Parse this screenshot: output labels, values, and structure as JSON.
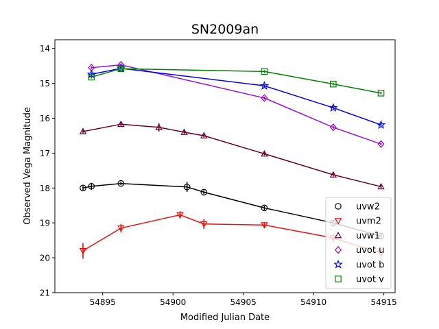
{
  "chart_data": {
    "type": "scatter",
    "title": "SN2009an",
    "xlabel": "Modified Julian Date",
    "ylabel": "Observed Vega Magnitude",
    "xlim": [
      54891.6,
      54915.8
    ],
    "ylim": [
      21,
      13.75
    ],
    "y_inverted": true,
    "grid": false,
    "legend_position": "lower-right",
    "x_ticks": [
      54895,
      54900,
      54905,
      54910,
      54915
    ],
    "y_ticks": [
      14,
      15,
      16,
      17,
      18,
      19,
      20,
      21
    ],
    "series": [
      {
        "name": "uvw2",
        "marker": "circle",
        "color": "#000000",
        "line": "#000000",
        "x": [
          54893.6,
          54894.2,
          54896.3,
          54901.0,
          54902.2,
          54906.5,
          54911.4,
          54914.8
        ],
        "y": [
          18.0,
          17.95,
          17.87,
          17.97,
          18.12,
          18.57,
          19.0,
          19.38
        ],
        "err": [
          0.06,
          0.1,
          0.05,
          0.14,
          0.06,
          0.06,
          0.08,
          0.1
        ]
      },
      {
        "name": "uvm2",
        "marker": "triangle-down",
        "color": "#ff0000",
        "line": "#ee1111",
        "x": [
          54893.6,
          54896.3,
          54900.5,
          54902.2,
          54906.5,
          54911.4,
          54914.8
        ],
        "y": [
          19.8,
          19.15,
          18.77,
          19.03,
          19.06,
          19.43,
          19.87
        ],
        "err": [
          0.22,
          0.12,
          0.1,
          0.14,
          0.08,
          0.12,
          0.16
        ]
      },
      {
        "name": "uvw1",
        "marker": "triangle-up",
        "color": "#660033",
        "line": "#660022",
        "x": [
          54893.6,
          54896.3,
          54899.0,
          54900.8,
          54902.2,
          54906.5,
          54911.4,
          54914.8
        ],
        "y": [
          16.38,
          16.17,
          16.26,
          16.4,
          16.5,
          17.02,
          17.62,
          17.96
        ],
        "err": [
          0.05,
          0.05,
          0.12,
          0.05,
          0.05,
          0.05,
          0.05,
          0.05
        ]
      },
      {
        "name": "uvot u",
        "marker": "diamond",
        "color": "#9900cc",
        "line": "#9911dd",
        "x": [
          54894.2,
          54896.3,
          54906.5,
          54911.4,
          54914.8
        ],
        "y": [
          14.55,
          14.47,
          15.42,
          16.26,
          16.74
        ],
        "err": [
          0.04,
          0.04,
          0.04,
          0.04,
          0.04
        ]
      },
      {
        "name": "uvot b",
        "marker": "star",
        "color": "#0000ff",
        "line": "#0000ee",
        "x": [
          54894.2,
          54896.3,
          54906.5,
          54911.4,
          54914.8
        ],
        "y": [
          14.74,
          14.57,
          15.07,
          15.7,
          16.19
        ],
        "err": [
          0.04,
          0.04,
          0.04,
          0.04,
          0.04
        ]
      },
      {
        "name": "uvot v",
        "marker": "square",
        "color": "#008000",
        "line": "#008000",
        "x": [
          54894.2,
          54896.3,
          54906.5,
          54911.4,
          54914.8
        ],
        "y": [
          14.82,
          14.58,
          14.66,
          15.02,
          15.28
        ],
        "err": [
          0.04,
          0.04,
          0.04,
          0.04,
          0.04
        ]
      }
    ]
  }
}
